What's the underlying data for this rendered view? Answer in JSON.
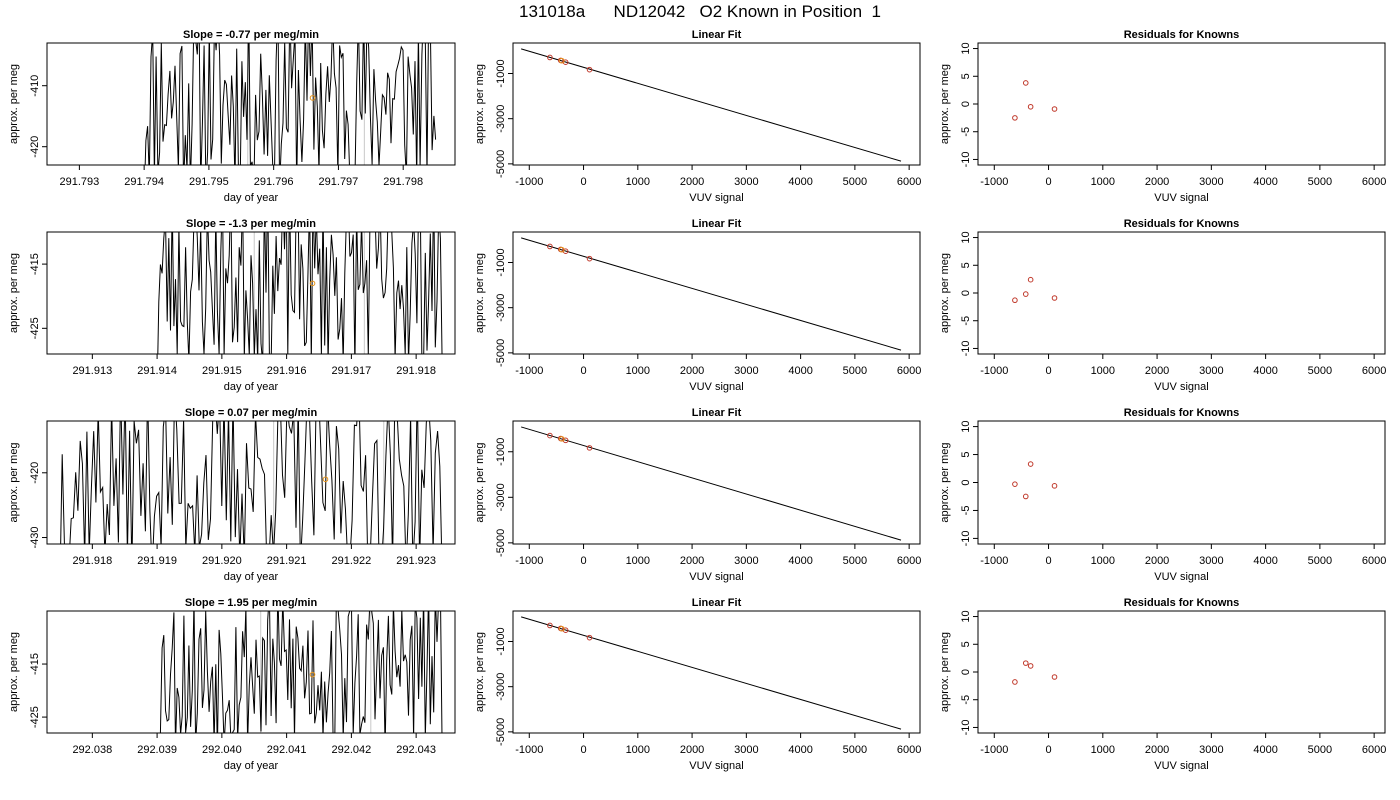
{
  "suptitle": "131018a      ND12042   O2 Known in Position  1",
  "colors": {
    "line": "#000000",
    "point_orange": "#e8951a",
    "point_red": "#c0392b",
    "grid_gray": "#c8c8c8"
  },
  "chart_data": [
    {
      "type": "line",
      "title": "Slope =  -0.77  per meg/min",
      "xlabel": "day of year",
      "ylabel": "approx. per meg",
      "xlim": [
        291.7925,
        291.7988
      ],
      "ylim": [
        -423,
        -403
      ],
      "xticks": [
        "291.793",
        "291.794",
        "291.795",
        "291.796",
        "291.797",
        "291.798"
      ],
      "yticks": [
        "-410",
        "-420"
      ],
      "start_x": 291.794,
      "end_x": 291.7985,
      "seed": 11,
      "center": -412,
      "amp": 12,
      "vlines": [
        291.7956,
        291.7974
      ],
      "marker": {
        "x": 291.7966,
        "y": -412
      }
    },
    {
      "type": "scatter",
      "title": "Linear Fit",
      "xlabel": "VUV signal",
      "ylabel": "approx. per meg",
      "xlim": [
        -1300,
        6200
      ],
      "ylim": [
        -5050,
        350
      ],
      "xticks": [
        "-1000",
        "0",
        "1000",
        "2000",
        "3000",
        "4000",
        "5000",
        "6000"
      ],
      "yticks": [
        "-1000",
        "-3000",
        "-5000"
      ],
      "fit_line": {
        "x": [
          -1150,
          5850
        ],
        "y": [
          90,
          -4880
        ]
      },
      "points": [
        {
          "x": -620,
          "y": -290
        },
        {
          "x": -420,
          "y": -420
        },
        {
          "x": -330,
          "y": -500
        },
        {
          "x": 110,
          "y": -830
        }
      ],
      "highlight": {
        "x": -400,
        "y": -435
      }
    },
    {
      "type": "scatter",
      "title": "Residuals for Knowns",
      "xlabel": "VUV signal",
      "ylabel": "approx. per meg",
      "xlim": [
        -1300,
        6200
      ],
      "ylim": [
        -11,
        11
      ],
      "xticks": [
        "-1000",
        "0",
        "1000",
        "2000",
        "3000",
        "4000",
        "5000",
        "6000"
      ],
      "yticks": [
        "10",
        "5",
        "0",
        "-5",
        "-10"
      ],
      "points": [
        {
          "x": -620,
          "y": -2.5
        },
        {
          "x": -420,
          "y": 3.8
        },
        {
          "x": -330,
          "y": -0.5
        },
        {
          "x": 110,
          "y": -0.9
        }
      ]
    },
    {
      "type": "line",
      "title": "Slope =  -1.3  per meg/min",
      "xlabel": "day of year",
      "ylabel": "approx. per meg",
      "xlim": [
        291.9123,
        291.9186
      ],
      "ylim": [
        -429,
        -410
      ],
      "xticks": [
        "291.913",
        "291.914",
        "291.915",
        "291.916",
        "291.917",
        "291.918"
      ],
      "yticks": [
        "-415",
        "-425"
      ],
      "start_x": 291.914,
      "end_x": 291.9184,
      "seed": 23,
      "center": -417,
      "amp": 11,
      "vlines": [
        291.9155,
        291.9172
      ],
      "marker": {
        "x": 291.9164,
        "y": -418
      }
    },
    {
      "type": "scatter",
      "title": "Linear Fit",
      "xlabel": "VUV signal",
      "ylabel": "approx. per meg",
      "xlim": [
        -1300,
        6200
      ],
      "ylim": [
        -5050,
        350
      ],
      "xticks": [
        "-1000",
        "0",
        "1000",
        "2000",
        "3000",
        "4000",
        "5000",
        "6000"
      ],
      "yticks": [
        "-1000",
        "-3000",
        "-5000"
      ],
      "fit_line": {
        "x": [
          -1150,
          5850
        ],
        "y": [
          90,
          -4880
        ]
      },
      "points": [
        {
          "x": -620,
          "y": -290
        },
        {
          "x": -420,
          "y": -420
        },
        {
          "x": -330,
          "y": -500
        },
        {
          "x": 110,
          "y": -830
        }
      ],
      "highlight": {
        "x": -400,
        "y": -435
      }
    },
    {
      "type": "scatter",
      "title": "Residuals for Knowns",
      "xlabel": "VUV signal",
      "ylabel": "approx. per meg",
      "xlim": [
        -1300,
        6200
      ],
      "ylim": [
        -11,
        11
      ],
      "xticks": [
        "-1000",
        "0",
        "1000",
        "2000",
        "3000",
        "4000",
        "5000",
        "6000"
      ],
      "yticks": [
        "10",
        "5",
        "0",
        "-5",
        "-10"
      ],
      "points": [
        {
          "x": -620,
          "y": -1.3
        },
        {
          "x": -420,
          "y": -0.2
        },
        {
          "x": -330,
          "y": 2.4
        },
        {
          "x": 110,
          "y": -0.9
        }
      ]
    },
    {
      "type": "line",
      "title": "Slope =  0.07  per meg/min",
      "xlabel": "day of year",
      "ylabel": "approx. per meg",
      "xlim": [
        291.9173,
        291.9236
      ],
      "ylim": [
        -431,
        -412
      ],
      "xticks": [
        "291.918",
        "291.919",
        "291.920",
        "291.921",
        "291.922",
        "291.923"
      ],
      "yticks": [
        "-420",
        "-430"
      ],
      "start_x": 291.9175,
      "end_x": 291.9234,
      "seed": 37,
      "center": -421,
      "amp": 11,
      "vlines": [
        291.9208,
        291.9225
      ],
      "marker": {
        "x": 291.9216,
        "y": -421
      }
    },
    {
      "type": "scatter",
      "title": "Linear Fit",
      "xlabel": "VUV signal",
      "ylabel": "approx. per meg",
      "xlim": [
        -1300,
        6200
      ],
      "ylim": [
        -5050,
        350
      ],
      "xticks": [
        "-1000",
        "0",
        "1000",
        "2000",
        "3000",
        "4000",
        "5000",
        "6000"
      ],
      "yticks": [
        "-1000",
        "-3000",
        "-5000"
      ],
      "fit_line": {
        "x": [
          -1150,
          5850
        ],
        "y": [
          90,
          -4880
        ]
      },
      "points": [
        {
          "x": -620,
          "y": -290
        },
        {
          "x": -420,
          "y": -420
        },
        {
          "x": -330,
          "y": -500
        },
        {
          "x": 110,
          "y": -830
        }
      ],
      "highlight": {
        "x": -400,
        "y": -435
      }
    },
    {
      "type": "scatter",
      "title": "Residuals for Knowns",
      "xlabel": "VUV signal",
      "ylabel": "approx. per meg",
      "xlim": [
        -1300,
        6200
      ],
      "ylim": [
        -11,
        11
      ],
      "xticks": [
        "-1000",
        "0",
        "1000",
        "2000",
        "3000",
        "4000",
        "5000",
        "6000"
      ],
      "yticks": [
        "10",
        "5",
        "0",
        "-5",
        "-10"
      ],
      "points": [
        {
          "x": -620,
          "y": -0.3
        },
        {
          "x": -420,
          "y": -2.5
        },
        {
          "x": -330,
          "y": 3.3
        },
        {
          "x": 110,
          "y": -0.6
        }
      ]
    },
    {
      "type": "line",
      "title": "Slope =  1.95  per meg/min",
      "xlabel": "day of year",
      "ylabel": "approx. per meg",
      "xlim": [
        292.0373,
        292.0436
      ],
      "ylim": [
        -428,
        -405
      ],
      "xticks": [
        "292.038",
        "292.039",
        "292.040",
        "292.041",
        "292.042",
        "292.043"
      ],
      "yticks": [
        "-415",
        "-425"
      ],
      "start_x": 292.039,
      "end_x": 292.0434,
      "seed": 53,
      "center": -416,
      "amp": 12,
      "vlines": [
        292.0406,
        292.0423
      ],
      "marker": {
        "x": 292.0414,
        "y": -417
      }
    },
    {
      "type": "scatter",
      "title": "Linear Fit",
      "xlabel": "VUV signal",
      "ylabel": "approx. per meg",
      "xlim": [
        -1300,
        6200
      ],
      "ylim": [
        -5050,
        350
      ],
      "xticks": [
        "-1000",
        "0",
        "1000",
        "2000",
        "3000",
        "4000",
        "5000",
        "6000"
      ],
      "yticks": [
        "-1000",
        "-3000",
        "-5000"
      ],
      "fit_line": {
        "x": [
          -1150,
          5850
        ],
        "y": [
          90,
          -4880
        ]
      },
      "points": [
        {
          "x": -620,
          "y": -290
        },
        {
          "x": -420,
          "y": -420
        },
        {
          "x": -330,
          "y": -500
        },
        {
          "x": 110,
          "y": -830
        }
      ],
      "highlight": {
        "x": -400,
        "y": -435
      }
    },
    {
      "type": "scatter",
      "title": "Residuals for Knowns",
      "xlabel": "VUV signal",
      "ylabel": "approx. per meg",
      "xlim": [
        -1300,
        6200
      ],
      "ylim": [
        -11,
        11
      ],
      "xticks": [
        "-1000",
        "0",
        "1000",
        "2000",
        "3000",
        "4000",
        "5000",
        "6000"
      ],
      "yticks": [
        "10",
        "5",
        "0",
        "-5",
        "-10"
      ],
      "points": [
        {
          "x": -620,
          "y": -1.8
        },
        {
          "x": -420,
          "y": 1.6
        },
        {
          "x": -330,
          "y": 1.1
        },
        {
          "x": 110,
          "y": -0.9
        }
      ]
    }
  ]
}
